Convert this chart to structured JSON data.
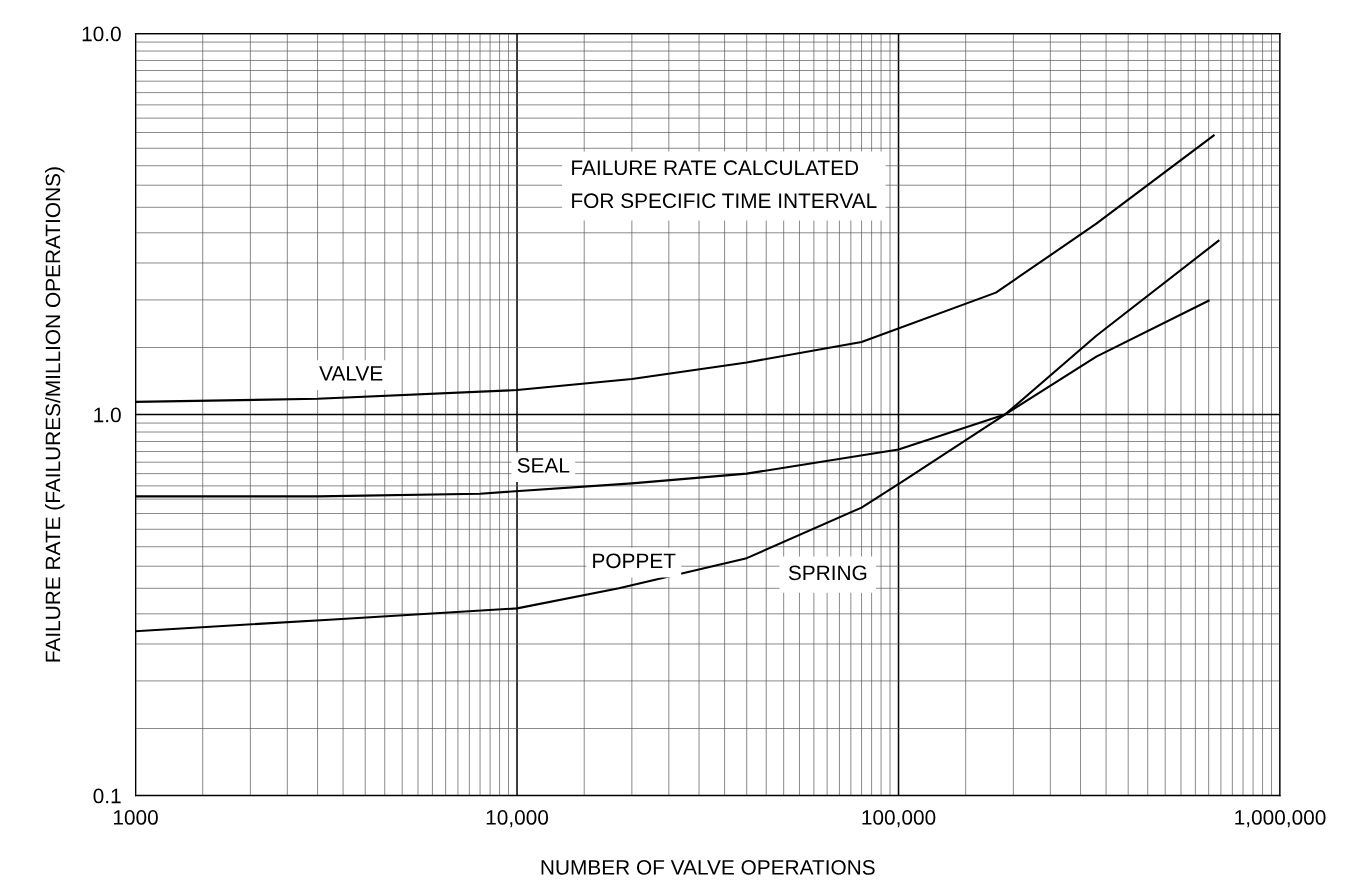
{
  "chart_data": {
    "type": "line",
    "xlabel": "NUMBER OF VALVE OPERATIONS",
    "ylabel": "FAILURE RATE (FAILURES/MILLION OPERATIONS)",
    "log": "xy",
    "grid": true,
    "legend": false,
    "marker": "none",
    "line_style": "solid",
    "xlim": [
      1000,
      1000000
    ],
    "ylim": [
      0.1,
      10
    ],
    "xticks": [
      1000,
      {
        "value": 10000,
        "label": "10,000"
      },
      {
        "value": 100000,
        "label": "100,000"
      },
      {
        "value": 1000000,
        "label": "1,000,000"
      }
    ],
    "yticks": [
      {
        "value": 0.1,
        "label": "0.1"
      },
      {
        "value": 1,
        "label": "1.0"
      },
      {
        "value": 10,
        "label": "10.0"
      }
    ],
    "series": [
      {
        "name": "VALVE",
        "color": "#000000",
        "x": [
          1000,
          3000,
          10000,
          20000,
          40000,
          80000,
          180000,
          330000,
          670000
        ],
        "values": [
          1.08,
          1.1,
          1.16,
          1.24,
          1.37,
          1.55,
          2.09,
          3.17,
          5.4
        ]
      },
      {
        "name": "SEAL",
        "color": "#000000",
        "x": [
          1000,
          3000,
          8000,
          20000,
          40000,
          100000,
          190000,
          330000,
          650000
        ],
        "values": [
          0.61,
          0.61,
          0.62,
          0.66,
          0.7,
          0.81,
          1.0,
          1.42,
          1.99
        ]
      },
      {
        "name": "POPPET",
        "color": "#000000",
        "x": [
          1000,
          3300,
          10000,
          18500,
          40000,
          80000,
          103000,
          190000,
          330000,
          690000
        ],
        "values": [
          0.27,
          0.29,
          0.31,
          0.35,
          0.42,
          0.57,
          0.67,
          1.0,
          1.61,
          2.86
        ]
      }
    ],
    "annotations": [
      "FAILURE RATE CALCULATED\nFOR SPECIFIC TIME INTERVAL",
      "SPRING"
    ]
  }
}
